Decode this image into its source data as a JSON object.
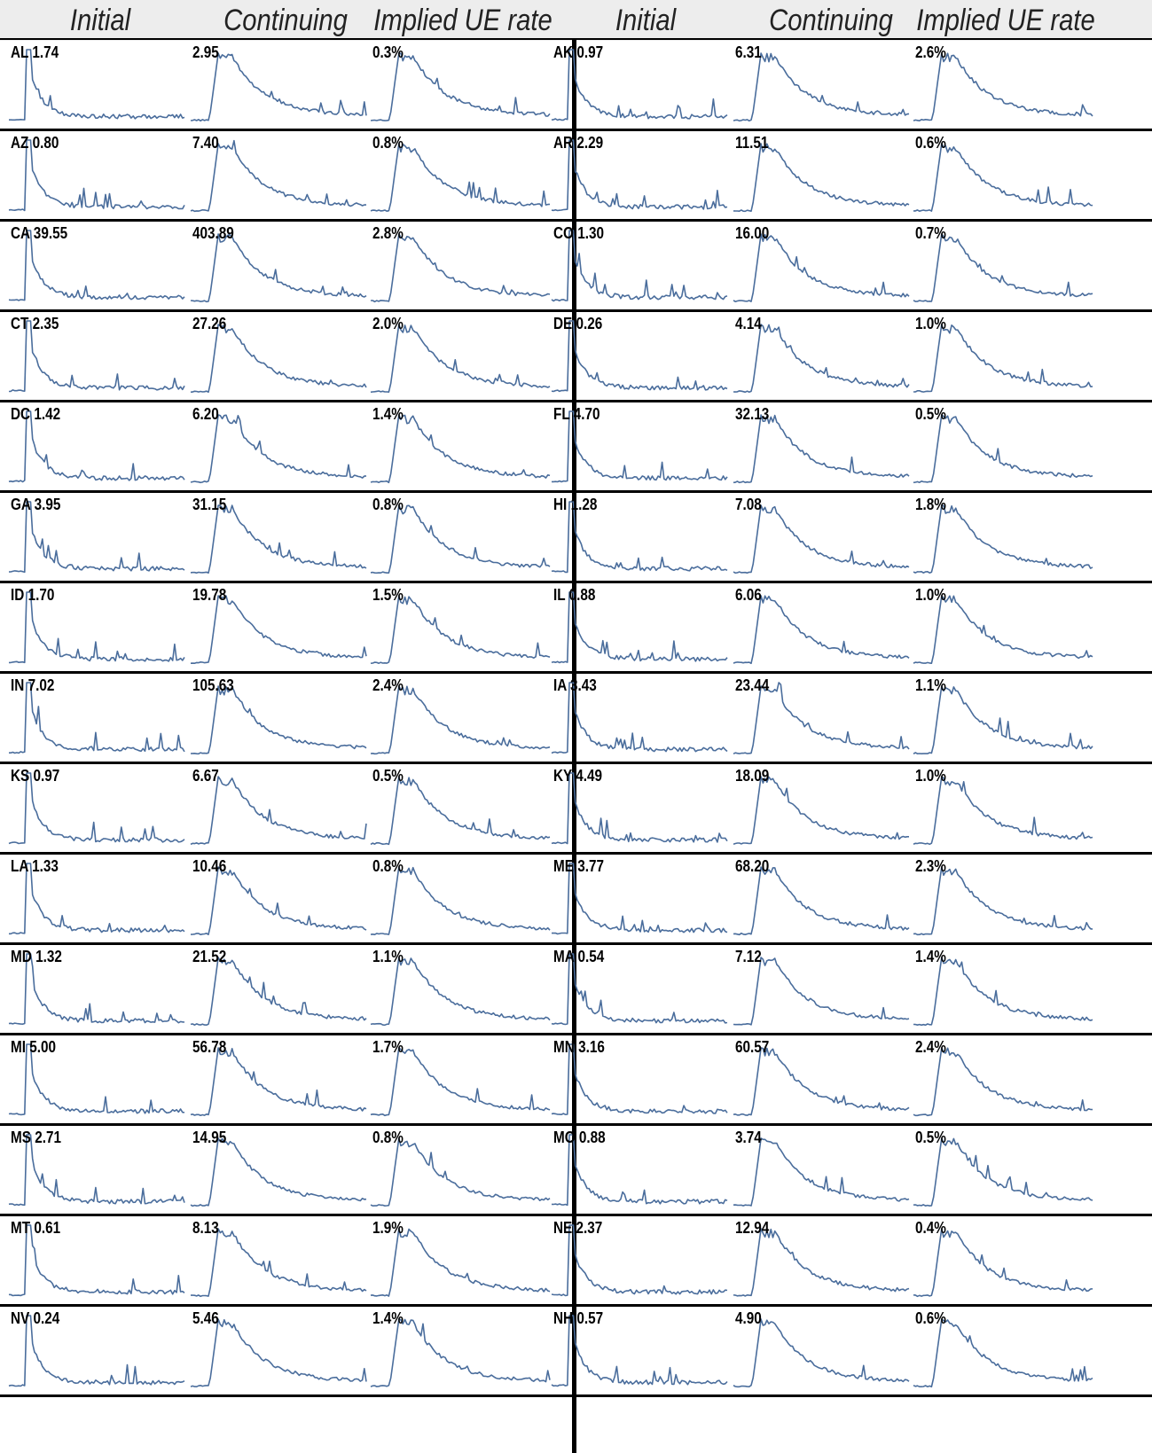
{
  "headers": [
    "Initial",
    "Continuing",
    "Implied UE rate",
    "Initial",
    "Continuing",
    "Implied UE rate"
  ],
  "line_color": "#4a6d9c",
  "chart_data": {
    "type": "line",
    "metrics": [
      "Initial",
      "Continuing",
      "Implied UE rate"
    ],
    "states": [
      {
        "state": "AL",
        "initial": "1.74",
        "continuing": "2.95",
        "rate": "0.3%"
      },
      {
        "state": "AK",
        "initial": "0.97",
        "continuing": "6.31",
        "rate": "2.6%"
      },
      {
        "state": "AZ",
        "initial": "0.80",
        "continuing": "7.40",
        "rate": "0.8%"
      },
      {
        "state": "AR",
        "initial": "2.29",
        "continuing": "11.51",
        "rate": "0.6%"
      },
      {
        "state": "CA",
        "initial": "39.55",
        "continuing": "403.89",
        "rate": "2.8%"
      },
      {
        "state": "CO",
        "initial": "1.30",
        "continuing": "16.00",
        "rate": "0.7%"
      },
      {
        "state": "CT",
        "initial": "2.35",
        "continuing": "27.26",
        "rate": "2.0%"
      },
      {
        "state": "DE",
        "initial": "0.26",
        "continuing": "4.14",
        "rate": "1.0%"
      },
      {
        "state": "DC",
        "initial": "1.42",
        "continuing": "6.20",
        "rate": "1.4%"
      },
      {
        "state": "FL",
        "initial": "4.70",
        "continuing": "32.13",
        "rate": "0.5%"
      },
      {
        "state": "GA",
        "initial": "3.95",
        "continuing": "31.15",
        "rate": "0.8%"
      },
      {
        "state": "HI",
        "initial": "1.28",
        "continuing": "7.08",
        "rate": "1.8%"
      },
      {
        "state": "ID",
        "initial": "1.70",
        "continuing": "19.78",
        "rate": "1.5%"
      },
      {
        "state": "IL",
        "initial": "0.88",
        "continuing": "6.06",
        "rate": "1.0%"
      },
      {
        "state": "IN",
        "initial": "7.02",
        "continuing": "105.63",
        "rate": "2.4%"
      },
      {
        "state": "IA",
        "initial": "3.43",
        "continuing": "23.44",
        "rate": "1.1%"
      },
      {
        "state": "KS",
        "initial": "0.97",
        "continuing": "6.67",
        "rate": "0.5%"
      },
      {
        "state": "KY",
        "initial": "4.49",
        "continuing": "18.09",
        "rate": "1.0%"
      },
      {
        "state": "LA",
        "initial": "1.33",
        "continuing": "10.46",
        "rate": "0.8%"
      },
      {
        "state": "ME",
        "initial": "3.77",
        "continuing": "68.20",
        "rate": "2.3%"
      },
      {
        "state": "MD",
        "initial": "1.32",
        "continuing": "21.52",
        "rate": "1.1%"
      },
      {
        "state": "MA",
        "initial": "0.54",
        "continuing": "7.12",
        "rate": "1.4%"
      },
      {
        "state": "MI",
        "initial": "5.00",
        "continuing": "56.78",
        "rate": "1.7%"
      },
      {
        "state": "MN",
        "initial": "3.16",
        "continuing": "60.57",
        "rate": "2.4%"
      },
      {
        "state": "MS",
        "initial": "2.71",
        "continuing": "14.95",
        "rate": "0.8%"
      },
      {
        "state": "MO",
        "initial": "0.88",
        "continuing": "3.74",
        "rate": "0.5%"
      },
      {
        "state": "MT",
        "initial": "0.61",
        "continuing": "8.13",
        "rate": "1.9%"
      },
      {
        "state": "NE",
        "initial": "2.37",
        "continuing": "12.94",
        "rate": "0.4%"
      },
      {
        "state": "NV",
        "initial": "0.24",
        "continuing": "5.46",
        "rate": "1.4%"
      },
      {
        "state": "NH",
        "initial": "0.57",
        "continuing": "4.90",
        "rate": "0.6%"
      }
    ]
  }
}
